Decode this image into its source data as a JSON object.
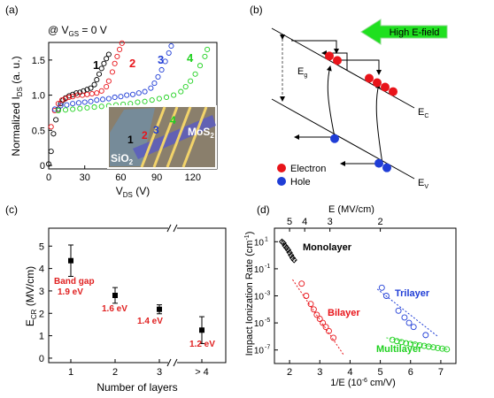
{
  "panels": {
    "a": {
      "tag": "(a)",
      "condition": "@ V",
      "condition_sub": "GS",
      "condition_rest": " = 0 V",
      "ylabel_main": "Normalized I",
      "ylabel_sub": "DS",
      "ylabel_unit": " (a. u.)",
      "xlabel_main": "V",
      "xlabel_sub": "DS",
      "xlabel_unit": " (V)",
      "xticks": [
        "0",
        "30",
        "60",
        "90",
        "120"
      ],
      "yticks": [
        "0",
        "0.5",
        "1.0",
        "1.5"
      ],
      "curve_labels": [
        "1",
        "2",
        "3",
        "4"
      ],
      "inset": {
        "label_mos2": "MoS",
        "label_mos2_sub": "2",
        "label_sio2": "SiO",
        "label_sio2_sub": "2",
        "numbers": [
          "1",
          "2",
          "3",
          "4"
        ]
      }
    },
    "b": {
      "tag": "(b)",
      "field_label": "High E-field",
      "eg_label": "E",
      "eg_sub": "g",
      "ec_label": "E",
      "ec_sub": "C",
      "ev_label": "E",
      "ev_sub": "V",
      "legend": [
        {
          "label": "Electron",
          "color": "#e8141a"
        },
        {
          "label": "Hole",
          "color": "#1f3dd6"
        }
      ]
    },
    "c": {
      "tag": "(c)",
      "ylabel_main": "E",
      "ylabel_sub": "CR",
      "ylabel_unit": " (MV/cm)",
      "xlabel": "Number of layers",
      "xticks": [
        "1",
        "2",
        "3",
        "> 4"
      ],
      "yticks": [
        "0",
        "1",
        "2",
        "3",
        "4",
        "5"
      ],
      "bandgap_note": [
        "Band gap",
        "1.9 eV"
      ],
      "gap_labels": [
        "1.6 eV",
        "1.4 eV",
        "1.2 eV"
      ]
    },
    "d": {
      "tag": "(d)",
      "ylabel": "Impact Ionization Rate (cm",
      "ylabel_sup": "-1",
      "ylabel_end": ")",
      "xlabel_main": "1/E (10",
      "xlabel_sup": "-6",
      "xlabel_end": " cm/V)",
      "top_label": "E (MV/cm)",
      "top_ticks": [
        "5",
        "4",
        "3",
        "2"
      ],
      "xticks": [
        "2",
        "3",
        "4",
        "5",
        "6",
        "7"
      ],
      "ytick_mantissa": [
        "10",
        "10",
        "10",
        "10",
        "10"
      ],
      "ytick_exp": [
        "1",
        "-1",
        "-3",
        "-5",
        "-7"
      ],
      "series_labels": [
        "Monolayer",
        "Bilayer",
        "Trilayer",
        "Multilayer"
      ]
    }
  },
  "colors": {
    "layer1": "#000000",
    "layer2": "#e8141a",
    "layer3": "#1f3dd6",
    "layer4": "#1fd11f",
    "gap_label": "#e02020",
    "arrow_fill": "#1fe01f"
  },
  "chart_data": [
    {
      "panel": "a",
      "type": "scatter",
      "xlim": [
        0,
        140
      ],
      "ylim": [
        -0.05,
        1.75
      ],
      "grid": false,
      "series": [
        {
          "name": "1",
          "marker": "open-circle",
          "color": "#000000",
          "x": [
            0,
            2,
            4,
            6,
            8,
            10,
            12,
            14,
            17,
            20,
            23,
            26,
            29,
            32,
            35,
            38,
            40,
            42,
            44,
            46,
            48,
            50
          ],
          "y": [
            0.02,
            0.2,
            0.45,
            0.65,
            0.8,
            0.88,
            0.93,
            0.96,
            0.99,
            1.01,
            1.03,
            1.04,
            1.06,
            1.08,
            1.1,
            1.15,
            1.22,
            1.3,
            1.38,
            1.45,
            1.52,
            1.58
          ]
        },
        {
          "name": "2",
          "marker": "open-circle",
          "color": "#e8141a",
          "x": [
            2,
            5,
            8,
            11,
            14,
            17,
            20,
            24,
            28,
            32,
            36,
            40,
            44,
            48,
            50,
            53,
            55,
            57,
            59,
            61
          ],
          "y": [
            0.55,
            0.78,
            0.88,
            0.93,
            0.95,
            0.97,
            0.98,
            1.0,
            1.0,
            1.01,
            1.02,
            1.03,
            1.06,
            1.12,
            1.2,
            1.33,
            1.45,
            1.55,
            1.65,
            1.74
          ]
        },
        {
          "name": "3",
          "marker": "open-circle",
          "color": "#1f3dd6",
          "x": [
            5,
            10,
            15,
            20,
            25,
            30,
            35,
            40,
            45,
            50,
            55,
            60,
            65,
            70,
            75,
            80,
            85,
            88,
            91,
            94,
            97,
            100,
            102
          ],
          "y": [
            0.8,
            0.85,
            0.86,
            0.88,
            0.89,
            0.9,
            0.91,
            0.93,
            0.94,
            0.95,
            0.97,
            0.98,
            1.0,
            1.01,
            1.03,
            1.05,
            1.1,
            1.17,
            1.26,
            1.36,
            1.48,
            1.6,
            1.7
          ]
        },
        {
          "name": "4",
          "marker": "open-circle",
          "color": "#1fd11f",
          "x": [
            8,
            14,
            20,
            26,
            32,
            38,
            44,
            50,
            56,
            62,
            68,
            74,
            80,
            86,
            92,
            98,
            104,
            110,
            114,
            118,
            122,
            126,
            130,
            132
          ],
          "y": [
            0.78,
            0.79,
            0.8,
            0.81,
            0.82,
            0.83,
            0.84,
            0.85,
            0.86,
            0.87,
            0.88,
            0.9,
            0.91,
            0.93,
            0.95,
            0.97,
            1.0,
            1.05,
            1.12,
            1.2,
            1.3,
            1.42,
            1.55,
            1.65
          ]
        }
      ]
    },
    {
      "panel": "c",
      "type": "scatter",
      "categories": [
        "1",
        "2",
        "3",
        "> 4"
      ],
      "values": [
        4.35,
        2.8,
        2.18,
        1.25
      ],
      "errors": [
        0.7,
        0.35,
        0.2,
        0.6
      ],
      "ylabel": "E_CR (MV/cm)",
      "xlabel": "Number of layers",
      "ylim": [
        -0.2,
        5.8
      ],
      "grid": false
    },
    {
      "panel": "d",
      "type": "scatter",
      "xlim": [
        1.5,
        7.5
      ],
      "yscale": "log",
      "ylim_exp": [
        -8,
        2
      ],
      "top_axis": {
        "label": "E (MV/cm)",
        "ticks": [
          5,
          4,
          3,
          2
        ]
      },
      "grid": false,
      "series": [
        {
          "name": "Monolayer",
          "color": "#000000",
          "marker": "open-diamond",
          "x": [
            1.75,
            1.8,
            1.85,
            1.9,
            1.95,
            2.0,
            2.05,
            2.1,
            2.15
          ],
          "log10y": [
            1.0,
            0.9,
            0.7,
            0.55,
            0.4,
            0.2,
            0.0,
            -0.2,
            -0.35
          ],
          "fit": {
            "x": [
              1.72,
              2.2
            ],
            "log10y": [
              1.15,
              -0.45
            ]
          }
        },
        {
          "name": "Bilayer",
          "color": "#e8141a",
          "marker": "open-circle",
          "x": [
            2.4,
            2.55,
            2.7,
            2.8,
            2.9,
            3.0,
            3.1,
            3.2,
            3.3,
            3.45
          ],
          "log10y": [
            -2.1,
            -3.0,
            -3.6,
            -4.0,
            -4.4,
            -4.7,
            -5.0,
            -5.3,
            -5.6,
            -6.1
          ],
          "fit": {
            "x": [
              2.1,
              3.8
            ],
            "log10y": [
              -1.8,
              -7.4
            ]
          }
        },
        {
          "name": "Trilayer",
          "color": "#1f3dd6",
          "marker": "open-circle",
          "x": [
            5.05,
            5.2,
            5.6,
            5.8,
            5.95,
            6.1,
            6.5
          ],
          "log10y": [
            -2.4,
            -3.0,
            -4.1,
            -4.6,
            -5.0,
            -5.3,
            -5.9
          ],
          "fit": {
            "x": [
              4.9,
              6.9
            ],
            "log10y": [
              -2.5,
              -6.0
            ]
          }
        },
        {
          "name": "Multilayer",
          "color": "#1fd11f",
          "marker": "open-circle",
          "x": [
            5.4,
            5.55,
            5.7,
            5.85,
            6.0,
            6.15,
            6.3,
            6.45,
            6.6,
            6.75,
            6.9,
            7.05,
            7.2
          ],
          "log10y": [
            -6.25,
            -6.35,
            -6.42,
            -6.5,
            -6.55,
            -6.6,
            -6.65,
            -6.7,
            -6.75,
            -6.8,
            -6.85,
            -6.9,
            -6.95
          ],
          "fit": {
            "x": [
              5.2,
              7.3
            ],
            "log10y": [
              -6.1,
              -7.0
            ]
          }
        }
      ]
    }
  ]
}
